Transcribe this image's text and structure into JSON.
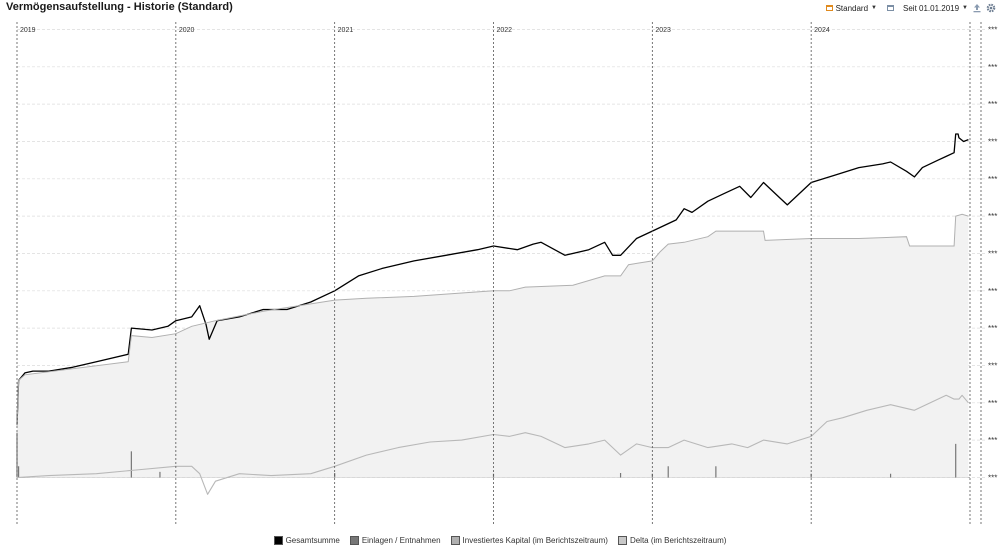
{
  "header": {
    "title": "Vermögensaufstellung - Historie (Standard)",
    "view_label": "Standard",
    "period_label": "Seit 01.01.2019"
  },
  "icons": [
    "calendar-icon",
    "chevron-down-icon",
    "calendar-icon",
    "chevron-down-icon",
    "export-icon",
    "gear-icon"
  ],
  "colors": {
    "gesamtsumme": "#000000",
    "einlagen": "#777777",
    "investiert_line": "#b0b0b0",
    "investiert_fill": "#f2f2f2",
    "delta": "#b8b8b8"
  },
  "chart_data": {
    "type": "line",
    "title": "",
    "xlabel": "",
    "ylabel": "",
    "grid": true,
    "legend_position": "bottom",
    "x_tick_labels": [
      "2019",
      "2020",
      "2021",
      "2022",
      "2023",
      "2024"
    ],
    "y_tick_labels": [
      "***",
      "***",
      "***",
      "***",
      "***",
      "***",
      "***",
      "***",
      "***",
      "***",
      "***",
      "***",
      "***"
    ],
    "y_ticks_relative": [
      12,
      11,
      10,
      9,
      8,
      7,
      6,
      5,
      4,
      3,
      2,
      1,
      0
    ],
    "ylim": [
      -1.3,
      12.2
    ],
    "xlim": [
      2019.0,
      2025.0
    ],
    "series": [
      {
        "name": "Gesamtsumme",
        "kind": "line",
        "points": [
          [
            2019.0,
            1.4
          ],
          [
            2019.01,
            2.6
          ],
          [
            2019.05,
            2.8
          ],
          [
            2019.1,
            2.85
          ],
          [
            2019.2,
            2.85
          ],
          [
            2019.35,
            2.95
          ],
          [
            2019.5,
            3.1
          ],
          [
            2019.7,
            3.3
          ],
          [
            2019.72,
            4.0
          ],
          [
            2019.85,
            3.95
          ],
          [
            2019.95,
            4.05
          ],
          [
            2020.0,
            4.2
          ],
          [
            2020.1,
            4.3
          ],
          [
            2020.15,
            4.6
          ],
          [
            2020.19,
            4.1
          ],
          [
            2020.21,
            3.7
          ],
          [
            2020.26,
            4.2
          ],
          [
            2020.4,
            4.3
          ],
          [
            2020.55,
            4.5
          ],
          [
            2020.7,
            4.5
          ],
          [
            2020.85,
            4.7
          ],
          [
            2021.0,
            5.0
          ],
          [
            2021.15,
            5.4
          ],
          [
            2021.3,
            5.6
          ],
          [
            2021.5,
            5.8
          ],
          [
            2021.7,
            5.95
          ],
          [
            2021.9,
            6.1
          ],
          [
            2022.0,
            6.2
          ],
          [
            2022.15,
            6.1
          ],
          [
            2022.25,
            6.25
          ],
          [
            2022.3,
            6.3
          ],
          [
            2022.45,
            5.95
          ],
          [
            2022.6,
            6.1
          ],
          [
            2022.7,
            6.3
          ],
          [
            2022.75,
            5.95
          ],
          [
            2022.8,
            5.95
          ],
          [
            2022.9,
            6.4
          ],
          [
            2023.0,
            6.6
          ],
          [
            2023.15,
            6.9
          ],
          [
            2023.2,
            7.2
          ],
          [
            2023.25,
            7.1
          ],
          [
            2023.35,
            7.4
          ],
          [
            2023.45,
            7.6
          ],
          [
            2023.55,
            7.8
          ],
          [
            2023.62,
            7.5
          ],
          [
            2023.7,
            7.9
          ],
          [
            2023.8,
            7.5
          ],
          [
            2023.85,
            7.3
          ],
          [
            2023.95,
            7.7
          ],
          [
            2024.0,
            7.9
          ],
          [
            2024.15,
            8.1
          ],
          [
            2024.3,
            8.3
          ],
          [
            2024.45,
            8.4
          ],
          [
            2024.5,
            8.45
          ],
          [
            2024.6,
            8.2
          ],
          [
            2024.65,
            8.05
          ],
          [
            2024.7,
            8.3
          ],
          [
            2024.8,
            8.5
          ],
          [
            2024.85,
            8.6
          ],
          [
            2024.9,
            8.7
          ],
          [
            2024.91,
            9.2
          ],
          [
            2024.925,
            9.2
          ],
          [
            2024.93,
            9.1
          ],
          [
            2024.96,
            9.0
          ],
          [
            2024.99,
            9.05
          ]
        ]
      },
      {
        "name": "Einlagen / Entnahmen",
        "kind": "bar",
        "points": [
          [
            2019.0,
            1.2
          ],
          [
            2019.01,
            0.3
          ],
          [
            2019.72,
            0.7
          ],
          [
            2019.9,
            0.15
          ],
          [
            2021.0,
            0.12
          ],
          [
            2022.0,
            0.1
          ],
          [
            2022.8,
            0.12
          ],
          [
            2023.0,
            0.1
          ],
          [
            2023.1,
            0.3
          ],
          [
            2023.4,
            0.3
          ],
          [
            2024.0,
            0.1
          ],
          [
            2024.5,
            0.1
          ],
          [
            2024.91,
            0.9
          ]
        ]
      },
      {
        "name": "Investiertes Kapital (im Berichtszeitraum)",
        "kind": "area",
        "points": [
          [
            2019.0,
            1.4
          ],
          [
            2019.01,
            2.6
          ],
          [
            2019.05,
            2.75
          ],
          [
            2019.7,
            3.1
          ],
          [
            2019.72,
            3.8
          ],
          [
            2019.85,
            3.75
          ],
          [
            2020.0,
            3.85
          ],
          [
            2020.1,
            4.05
          ],
          [
            2020.25,
            4.2
          ],
          [
            2020.55,
            4.45
          ],
          [
            2020.85,
            4.65
          ],
          [
            2021.0,
            4.75
          ],
          [
            2021.2,
            4.8
          ],
          [
            2021.5,
            4.85
          ],
          [
            2022.0,
            5.0
          ],
          [
            2022.1,
            5.0
          ],
          [
            2022.2,
            5.1
          ],
          [
            2022.5,
            5.15
          ],
          [
            2022.7,
            5.4
          ],
          [
            2022.8,
            5.4
          ],
          [
            2022.85,
            5.7
          ],
          [
            2023.0,
            5.8
          ],
          [
            2023.05,
            6.05
          ],
          [
            2023.1,
            6.25
          ],
          [
            2023.2,
            6.3
          ],
          [
            2023.35,
            6.45
          ],
          [
            2023.4,
            6.6
          ],
          [
            2023.7,
            6.6
          ],
          [
            2023.71,
            6.35
          ],
          [
            2024.0,
            6.4
          ],
          [
            2024.3,
            6.4
          ],
          [
            2024.6,
            6.45
          ],
          [
            2024.62,
            6.2
          ],
          [
            2024.88,
            6.2
          ],
          [
            2024.9,
            6.2
          ],
          [
            2024.91,
            7.0
          ],
          [
            2024.95,
            7.05
          ],
          [
            2024.99,
            7.0
          ]
        ]
      },
      {
        "name": "Delta (im Berichtszeitraum)",
        "kind": "line",
        "points": [
          [
            2019.0,
            0.0
          ],
          [
            2019.2,
            0.05
          ],
          [
            2019.5,
            0.1
          ],
          [
            2019.75,
            0.2
          ],
          [
            2020.0,
            0.3
          ],
          [
            2020.1,
            0.3
          ],
          [
            2020.15,
            0.1
          ],
          [
            2020.2,
            -0.45
          ],
          [
            2020.25,
            -0.1
          ],
          [
            2020.4,
            0.1
          ],
          [
            2020.6,
            0.05
          ],
          [
            2020.85,
            0.1
          ],
          [
            2021.0,
            0.3
          ],
          [
            2021.2,
            0.6
          ],
          [
            2021.4,
            0.8
          ],
          [
            2021.6,
            0.95
          ],
          [
            2021.8,
            1.0
          ],
          [
            2022.0,
            1.15
          ],
          [
            2022.1,
            1.1
          ],
          [
            2022.2,
            1.2
          ],
          [
            2022.3,
            1.1
          ],
          [
            2022.45,
            0.8
          ],
          [
            2022.6,
            0.9
          ],
          [
            2022.7,
            1.0
          ],
          [
            2022.8,
            0.6
          ],
          [
            2022.9,
            0.9
          ],
          [
            2023.0,
            0.8
          ],
          [
            2023.1,
            0.8
          ],
          [
            2023.2,
            1.0
          ],
          [
            2023.35,
            0.8
          ],
          [
            2023.5,
            0.9
          ],
          [
            2023.6,
            0.8
          ],
          [
            2023.7,
            1.0
          ],
          [
            2023.85,
            0.9
          ],
          [
            2024.0,
            1.1
          ],
          [
            2024.1,
            1.5
          ],
          [
            2024.2,
            1.6
          ],
          [
            2024.35,
            1.8
          ],
          [
            2024.5,
            1.95
          ],
          [
            2024.65,
            1.8
          ],
          [
            2024.75,
            2.0
          ],
          [
            2024.85,
            2.2
          ],
          [
            2024.9,
            2.1
          ],
          [
            2024.93,
            2.1
          ],
          [
            2024.95,
            2.2
          ],
          [
            2024.99,
            2.0
          ]
        ]
      }
    ]
  },
  "legend": [
    {
      "label": "Gesamtsumme",
      "color": "#000000"
    },
    {
      "label": "Einlagen / Entnahmen",
      "color": "#777777"
    },
    {
      "label": "Investiertes Kapital (im Berichtszeitraum)",
      "color": "#b0b0b0"
    },
    {
      "label": "Delta (im Berichtszeitraum)",
      "color": "#b8b8b8"
    }
  ]
}
